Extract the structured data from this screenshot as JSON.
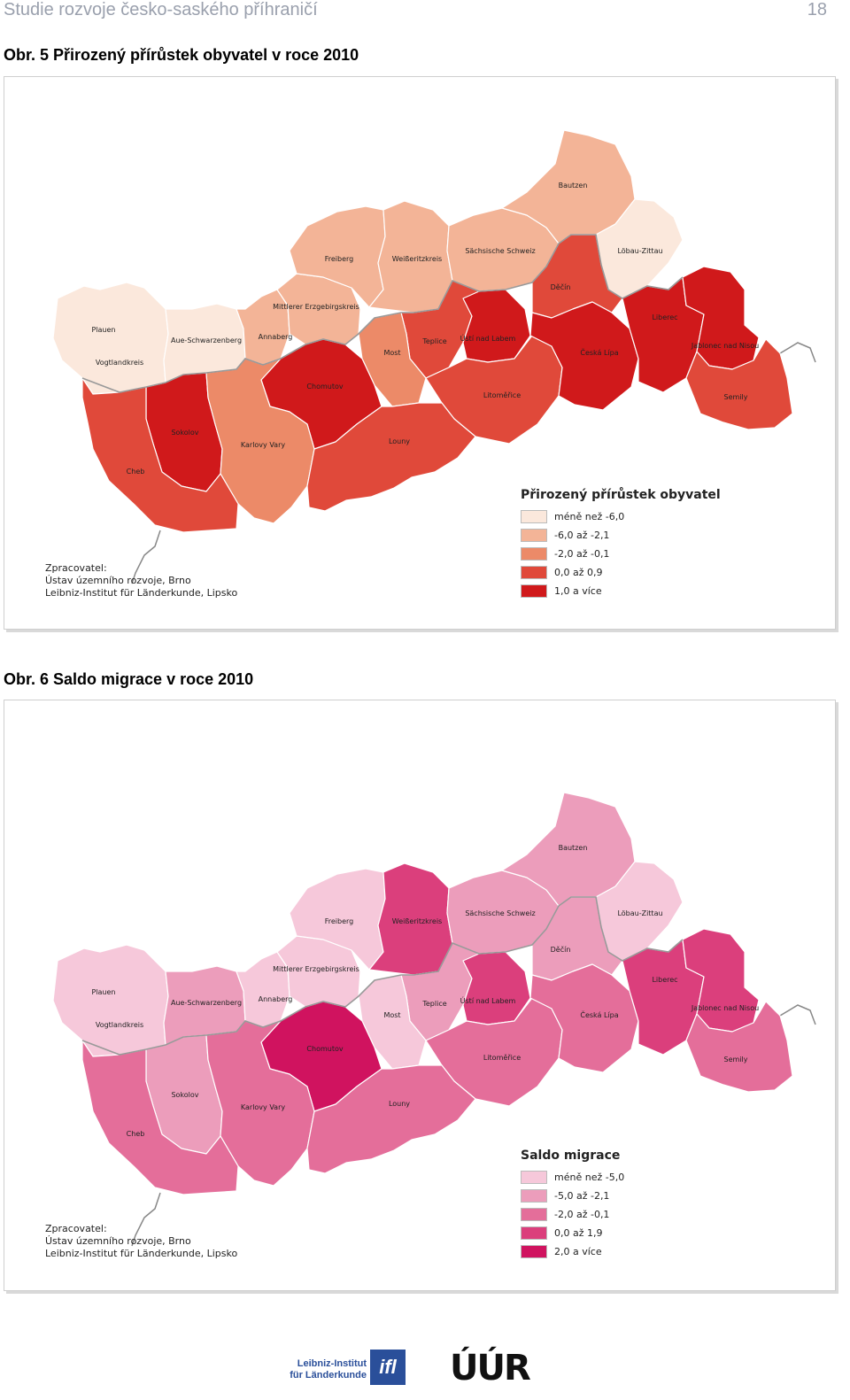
{
  "header": {
    "title": "Studie rozvoje česko-saského příhraničí",
    "page": "18"
  },
  "figures": [
    {
      "caption": "Obr. 5 Přirozený přírůstek obyvatel v roce 2010",
      "legend_title": "Přirozený přírůstek obyvatel",
      "legend": [
        {
          "label": "méně než -6,0",
          "color": "#fbe8dc"
        },
        {
          "label": "-6,0 až -2,1",
          "color": "#f3b497"
        },
        {
          "label": "-2,0 až -0,1",
          "color": "#ec8a68"
        },
        {
          "label": "0,0 až 0,9",
          "color": "#e0493a"
        },
        {
          "label": "1,0 a více",
          "color": "#d0191b"
        }
      ],
      "region_colors": {
        "Plauen": "#fbe8dc",
        "Vogtlandkreis": "#fbe8dc",
        "Aue-Schwarzenberg": "#fbe8dc",
        "Löbau-Zittau": "#fbe8dc",
        "Annaberg": "#f3b497",
        "Mittlerer Erzgebirgskreis": "#f3b497",
        "Freiberg": "#f3b497",
        "Weißeritzkreis": "#f3b497",
        "Sächsische Schweiz": "#f3b497",
        "Bautzen": "#f3b497",
        "Karlovy Vary": "#ec8a68",
        "Most": "#ec8a68",
        "Cheb": "#e0493a",
        "Louny": "#e0493a",
        "Teplice": "#e0493a",
        "Litoměřice": "#e0493a",
        "Děčín": "#e0493a",
        "Semily": "#e0493a",
        "Sokolov": "#d0191b",
        "Chomutov": "#d0191b",
        "Ústí nad Labem": "#d0191b",
        "Česká Lípa": "#d0191b",
        "Liberec": "#d0191b",
        "Jablonec nad Nisou": "#d0191b"
      },
      "credit": [
        "Zpracovatel:",
        "Ústav územního rozvoje, Brno",
        "Leibniz-Institut für Länderkunde, Lipsko"
      ]
    },
    {
      "caption": "Obr. 6 Saldo migrace v roce 2010",
      "legend_title": "Saldo migrace",
      "legend": [
        {
          "label": "méně než -5,0",
          "color": "#f6c8da"
        },
        {
          "label": "-5,0 až -2,1",
          "color": "#ec9dbb"
        },
        {
          "label": "-2,0 až -0,1",
          "color": "#e46e9a"
        },
        {
          "label": "0,0 až 1,9",
          "color": "#db3f7c"
        },
        {
          "label": "2,0 a více",
          "color": "#d0135f"
        }
      ],
      "region_colors": {
        "Vogtlandkreis": "#f6c8da",
        "Annaberg": "#f6c8da",
        "Mittlerer Erzgebirgskreis": "#f6c8da",
        "Freiberg": "#f6c8da",
        "Löbau-Zittau": "#f6c8da",
        "Most": "#f6c8da",
        "Aue-Schwarzenberg": "#ec9dbb",
        "Sokolov": "#ec9dbb",
        "Sächsische Schweiz": "#ec9dbb",
        "Bautzen": "#ec9dbb",
        "Děčín": "#ec9dbb",
        "Teplice": "#ec9dbb",
        "Cheb": "#e46e9a",
        "Karlovy Vary": "#e46e9a",
        "Louny": "#e46e9a",
        "Litoměřice": "#e46e9a",
        "Česká Lípa": "#e46e9a",
        "Semily": "#e46e9a",
        "Plauen": "#db3f7c",
        "Weißeritzkreis": "#db3f7c",
        "Ústí nad Labem": "#db3f7c",
        "Liberec": "#db3f7c",
        "Jablonec nad Nisou": "#db3f7c",
        "Chomutov": "#d0135f"
      },
      "credit": [
        "Zpracovatel:",
        "Ústav územního rozvoje, Brno",
        "Leibniz-Institut für Länderkunde, Lipsko"
      ]
    }
  ],
  "logos": {
    "ifl_text_1": "Leibniz-Institut",
    "ifl_text_2": "für Länderkunde",
    "ifl_mark": "ifl",
    "uur_mark": "ÚÚR"
  }
}
